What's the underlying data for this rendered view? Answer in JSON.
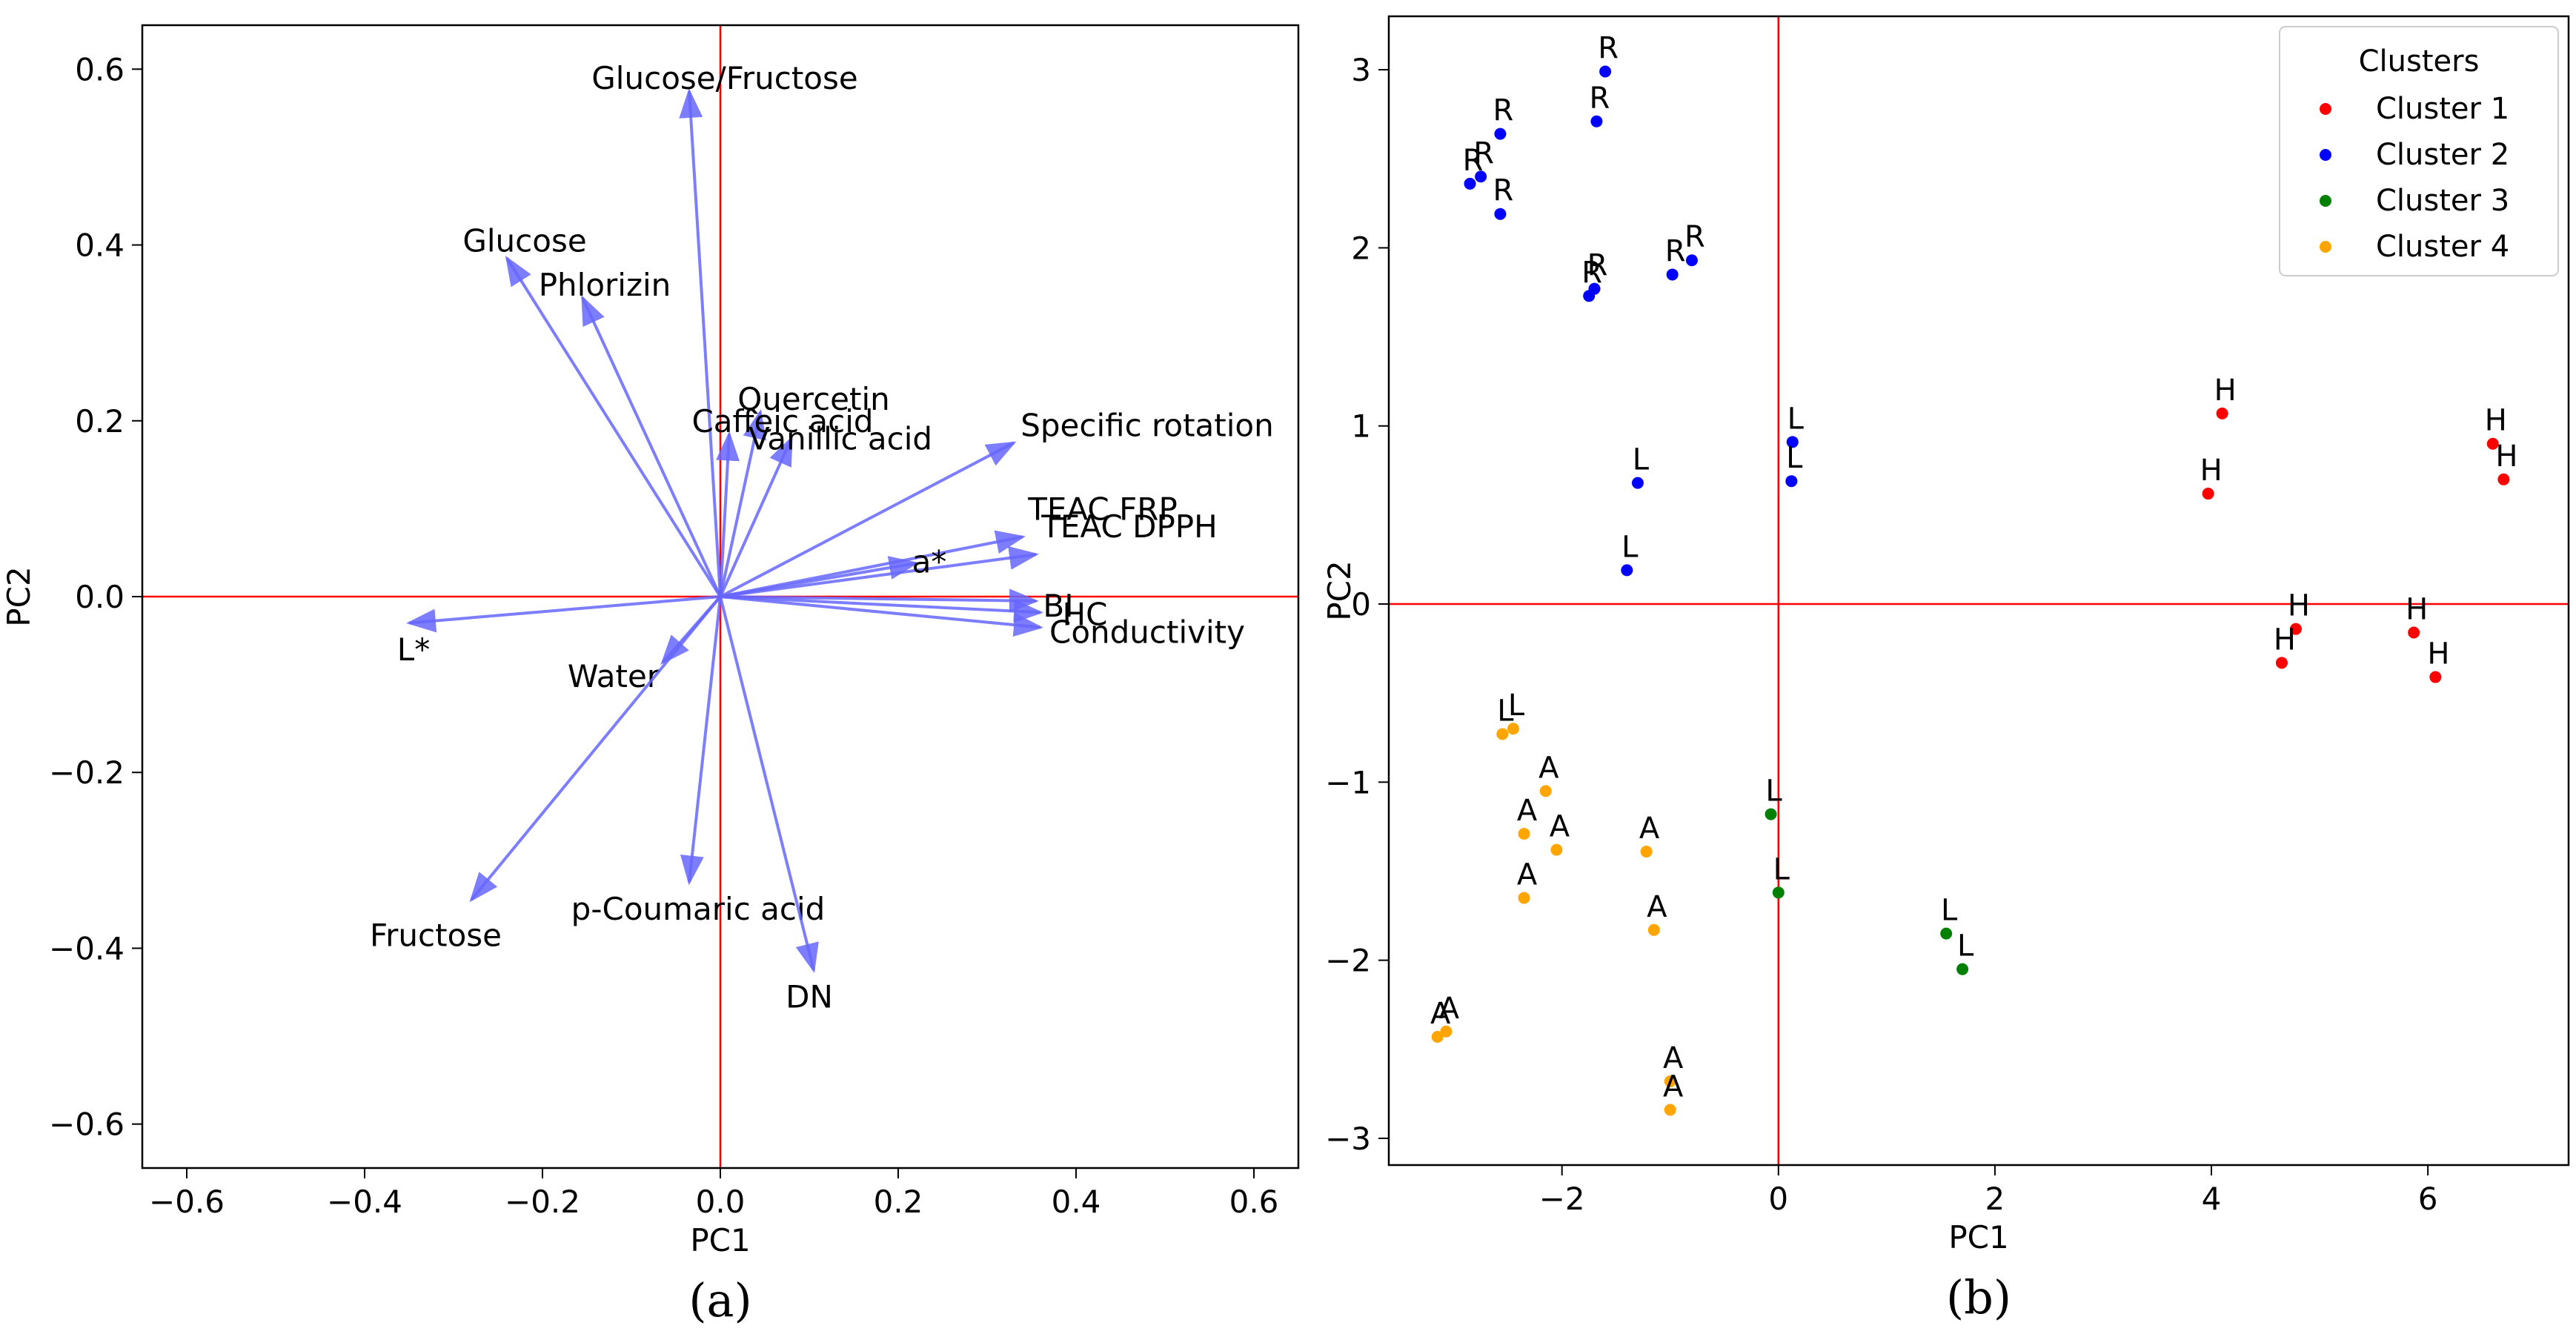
{
  "chart_data": [
    {
      "type": "biplot",
      "panel_label": "(a)",
      "xlabel": "PC1",
      "ylabel": "PC2",
      "xlim": [
        -0.65,
        0.65
      ],
      "ylim": [
        -0.65,
        0.65
      ],
      "xticks": [
        -0.6,
        -0.4,
        -0.2,
        0.0,
        0.2,
        0.4,
        0.6
      ],
      "xtick_labels": [
        "−0.6",
        "−0.4",
        "−0.2",
        "0.0",
        "0.2",
        "0.4",
        "0.6"
      ],
      "yticks": [
        -0.6,
        -0.4,
        -0.2,
        0.0,
        0.2,
        0.4,
        0.6
      ],
      "ytick_labels": [
        "−0.6",
        "−0.4",
        "−0.2",
        "0.0",
        "0.2",
        "0.4",
        "0.6"
      ],
      "reference_lines": {
        "x": 0,
        "y": 0,
        "color": "#ff0000"
      },
      "arrow_color": "#6666ff",
      "vectors": [
        {
          "label": "Glucose/Fructose",
          "x": -0.035,
          "y": 0.575,
          "lx": 0.005,
          "ly": 0.59
        },
        {
          "label": "Glucose",
          "x": -0.24,
          "y": 0.385,
          "lx": -0.22,
          "ly": 0.405
        },
        {
          "label": "Phlorizin",
          "x": -0.155,
          "y": 0.34,
          "lx": -0.13,
          "ly": 0.355
        },
        {
          "label": "Quercetin",
          "x": 0.045,
          "y": 0.21,
          "lx": 0.105,
          "ly": 0.225
        },
        {
          "label": "Caffeic acid",
          "x": 0.01,
          "y": 0.185,
          "lx": 0.07,
          "ly": 0.2
        },
        {
          "label": "Vanillic acid",
          "x": 0.08,
          "y": 0.18,
          "lx": 0.135,
          "ly": 0.18
        },
        {
          "label": "Specific rotation",
          "x": 0.33,
          "y": 0.175,
          "lx": 0.48,
          "ly": 0.195
        },
        {
          "label": "TEAC FRP",
          "x": 0.34,
          "y": 0.068,
          "lx": 0.43,
          "ly": 0.1
        },
        {
          "label": "TEAC DPPH",
          "x": 0.355,
          "y": 0.048,
          "lx": 0.46,
          "ly": 0.08
        },
        {
          "label": "a*",
          "x": 0.22,
          "y": 0.038,
          "lx": 0.235,
          "ly": 0.04
        },
        {
          "label": "BI",
          "x": 0.355,
          "y": -0.005,
          "lx": 0.38,
          "ly": -0.01
        },
        {
          "label": "HC",
          "x": 0.36,
          "y": -0.018,
          "lx": 0.41,
          "ly": -0.02
        },
        {
          "label": "Conductivity",
          "x": 0.36,
          "y": -0.035,
          "lx": 0.48,
          "ly": -0.04
        },
        {
          "label": "L*",
          "x": -0.35,
          "y": -0.03,
          "lx": -0.345,
          "ly": -0.06
        },
        {
          "label": "Water",
          "x": -0.065,
          "y": -0.075,
          "lx": -0.12,
          "ly": -0.09
        },
        {
          "label": "Fructose",
          "x": -0.28,
          "y": -0.345,
          "lx": -0.32,
          "ly": -0.385
        },
        {
          "label": "p-Coumaric acid",
          "x": -0.035,
          "y": -0.325,
          "lx": -0.025,
          "ly": -0.355
        },
        {
          "label": "DN",
          "x": 0.105,
          "y": -0.425,
          "lx": 0.1,
          "ly": -0.455
        }
      ]
    },
    {
      "type": "scatter",
      "panel_label": "(b)",
      "xlabel": "PC1",
      "ylabel": "PC2",
      "xlim": [
        -3.6,
        7.3
      ],
      "ylim": [
        -3.15,
        3.3
      ],
      "xticks": [
        -2,
        0,
        2,
        4,
        6
      ],
      "xtick_labels": [
        "−2",
        "0",
        "2",
        "4",
        "6"
      ],
      "yticks": [
        -3,
        -2,
        -1,
        0,
        1,
        2,
        3
      ],
      "ytick_labels": [
        "−3",
        "−2",
        "−1",
        "0",
        "1",
        "2",
        "3"
      ],
      "reference_lines": {
        "x": 0,
        "y": 0,
        "color": "#ff0000"
      },
      "legend": {
        "title": "Clusters",
        "placement": "top-right"
      },
      "series": [
        {
          "name": "Cluster 1",
          "color": "#ff0000",
          "points": [
            {
              "x": 4.1,
              "y": 1.07,
              "label": "H"
            },
            {
              "x": 3.97,
              "y": 0.62,
              "label": "H"
            },
            {
              "x": 6.6,
              "y": 0.9,
              "label": "H"
            },
            {
              "x": 6.7,
              "y": 0.7,
              "label": "H"
            },
            {
              "x": 4.78,
              "y": -0.14,
              "label": "H"
            },
            {
              "x": 4.65,
              "y": -0.33,
              "label": "H"
            },
            {
              "x": 5.87,
              "y": -0.16,
              "label": "H"
            },
            {
              "x": 6.07,
              "y": -0.41,
              "label": "H"
            }
          ]
        },
        {
          "name": "Cluster 2",
          "color": "#0000ff",
          "points": [
            {
              "x": -1.6,
              "y": 2.99,
              "label": "R"
            },
            {
              "x": -1.68,
              "y": 2.71,
              "label": "R"
            },
            {
              "x": -2.57,
              "y": 2.64,
              "label": "R"
            },
            {
              "x": -2.85,
              "y": 2.36,
              "label": "R"
            },
            {
              "x": -2.75,
              "y": 2.4,
              "label": "R"
            },
            {
              "x": -2.57,
              "y": 2.19,
              "label": "R"
            },
            {
              "x": -1.75,
              "y": 1.73,
              "label": "R"
            },
            {
              "x": -1.7,
              "y": 1.77,
              "label": "R"
            },
            {
              "x": -0.98,
              "y": 1.85,
              "label": "R"
            },
            {
              "x": -0.8,
              "y": 1.93,
              "label": "R"
            },
            {
              "x": 0.13,
              "y": 0.91,
              "label": "L"
            },
            {
              "x": 0.12,
              "y": 0.69,
              "label": "L"
            },
            {
              "x": -1.3,
              "y": 0.68,
              "label": "L"
            },
            {
              "x": -1.4,
              "y": 0.19,
              "label": "L"
            }
          ]
        },
        {
          "name": "Cluster 3",
          "color": "#008000",
          "points": [
            {
              "x": -0.07,
              "y": -1.18,
              "label": "L"
            },
            {
              "x": 0.0,
              "y": -1.62,
              "label": "L"
            },
            {
              "x": 1.55,
              "y": -1.85,
              "label": "L"
            },
            {
              "x": 1.7,
              "y": -2.05,
              "label": "L"
            }
          ]
        },
        {
          "name": "Cluster 4",
          "color": "#ffa500",
          "points": [
            {
              "x": -2.55,
              "y": -0.73,
              "label": "L"
            },
            {
              "x": -2.45,
              "y": -0.7,
              "label": "L"
            },
            {
              "x": -2.15,
              "y": -1.05,
              "label": "A"
            },
            {
              "x": -2.35,
              "y": -1.29,
              "label": "A"
            },
            {
              "x": -2.05,
              "y": -1.38,
              "label": "A"
            },
            {
              "x": -2.35,
              "y": -1.65,
              "label": "A"
            },
            {
              "x": -1.22,
              "y": -1.39,
              "label": "A"
            },
            {
              "x": -1.15,
              "y": -1.83,
              "label": "A"
            },
            {
              "x": -3.15,
              "y": -2.43,
              "label": "A"
            },
            {
              "x": -3.07,
              "y": -2.4,
              "label": "A"
            },
            {
              "x": -1.0,
              "y": -2.68,
              "label": "A"
            },
            {
              "x": -1.0,
              "y": -2.84,
              "label": "A"
            }
          ]
        }
      ]
    }
  ]
}
